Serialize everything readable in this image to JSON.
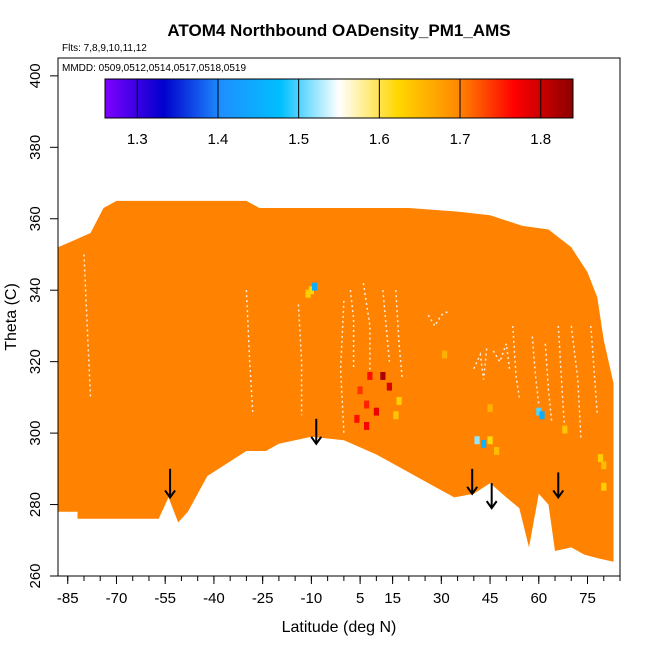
{
  "chart_data": {
    "type": "heatmap",
    "title": "ATOM4 Northbound OADensity_PM1_AMS",
    "flights_note": "Flts: 7,8,9,10,11,12",
    "dates_note": "MMDD: 0509,0512,0514,0517,0518,0519",
    "xlabel": "Latitude (deg N)",
    "ylabel": "Theta (C)",
    "xlim": [
      -88,
      85
    ],
    "ylim": [
      260,
      405
    ],
    "x_ticks": [
      "-85",
      "-70",
      "-55",
      "-40",
      "-25",
      "-10",
      "5",
      "15",
      "30",
      "45",
      "60",
      "75"
    ],
    "x_tick_values": [
      -85,
      -70,
      -55,
      -40,
      -25,
      -10,
      5,
      15,
      30,
      45,
      60,
      75
    ],
    "x_minor_step": 5,
    "y_ticks": [
      "260",
      "280",
      "300",
      "320",
      "340",
      "360",
      "380",
      "400"
    ],
    "y_tick_values": [
      260,
      280,
      300,
      320,
      340,
      360,
      380,
      400
    ],
    "colorbar": {
      "range": [
        1.26,
        1.84
      ],
      "tick_labels": [
        "1.3",
        "1.4",
        "1.5",
        "1.6",
        "1.7",
        "1.8"
      ],
      "tick_values": [
        1.3,
        1.4,
        1.5,
        1.6,
        1.7,
        1.8
      ],
      "colors": [
        "#7f00ff",
        "#0000cd",
        "#1e90ff",
        "#00bfff",
        "#ffffff",
        "#ffd700",
        "#ff8c00",
        "#ff0000",
        "#8b0000"
      ]
    },
    "background_value": 1.7,
    "background_color": "#ff8c00",
    "domain_top": [
      [
        -88,
        352
      ],
      [
        -83,
        354
      ],
      [
        -78,
        356
      ],
      [
        -74,
        363
      ],
      [
        -70,
        365
      ],
      [
        -60,
        365
      ],
      [
        -30,
        365
      ],
      [
        -26,
        363
      ],
      [
        -10,
        363
      ],
      [
        5,
        363
      ],
      [
        20,
        363
      ],
      [
        35,
        362
      ],
      [
        45,
        361
      ],
      [
        55,
        358
      ],
      [
        63,
        357
      ],
      [
        70,
        352
      ],
      [
        75,
        345
      ],
      [
        78,
        338
      ],
      [
        80,
        326
      ],
      [
        83,
        314
      ]
    ],
    "domain_bottom": [
      [
        -88,
        278
      ],
      [
        -82,
        278
      ],
      [
        -82,
        276
      ],
      [
        -65,
        276
      ],
      [
        -57,
        276
      ],
      [
        -54,
        282
      ],
      [
        -51,
        275
      ],
      [
        -48,
        278
      ],
      [
        -42,
        288
      ],
      [
        -30,
        295
      ],
      [
        -24,
        295
      ],
      [
        -20,
        297
      ],
      [
        -10,
        299
      ],
      [
        0,
        298
      ],
      [
        10,
        294
      ],
      [
        20,
        289
      ],
      [
        28,
        285
      ],
      [
        34,
        282
      ],
      [
        40,
        283
      ],
      [
        45,
        286
      ],
      [
        50,
        282
      ],
      [
        54,
        279
      ],
      [
        57,
        268
      ],
      [
        60,
        283
      ],
      [
        63,
        280
      ],
      [
        65,
        267
      ],
      [
        70,
        268
      ],
      [
        74,
        266
      ],
      [
        78,
        265
      ],
      [
        83,
        264
      ]
    ],
    "cells": [
      {
        "lat": -10,
        "theta": 340,
        "value": 1.62
      },
      {
        "lat": -9,
        "theta": 341,
        "value": 1.45
      },
      {
        "lat": -11,
        "theta": 339,
        "value": 1.63
      },
      {
        "lat": 8,
        "theta": 316,
        "value": 1.76
      },
      {
        "lat": 12,
        "theta": 316,
        "value": 1.82
      },
      {
        "lat": 5,
        "theta": 312,
        "value": 1.74
      },
      {
        "lat": 7,
        "theta": 308,
        "value": 1.75
      },
      {
        "lat": 14,
        "theta": 313,
        "value": 1.79
      },
      {
        "lat": 4,
        "theta": 304,
        "value": 1.76
      },
      {
        "lat": 10,
        "theta": 306,
        "value": 1.78
      },
      {
        "lat": 17,
        "theta": 309,
        "value": 1.63
      },
      {
        "lat": 7,
        "theta": 302,
        "value": 1.77
      },
      {
        "lat": 16,
        "theta": 305,
        "value": 1.64
      },
      {
        "lat": 31,
        "theta": 322,
        "value": 1.66
      },
      {
        "lat": 41,
        "theta": 298,
        "value": 1.52
      },
      {
        "lat": 43,
        "theta": 297,
        "value": 1.46
      },
      {
        "lat": 45,
        "theta": 298,
        "value": 1.62
      },
      {
        "lat": 47,
        "theta": 295,
        "value": 1.65
      },
      {
        "lat": 45,
        "theta": 307,
        "value": 1.66
      },
      {
        "lat": 60,
        "theta": 306,
        "value": 1.5
      },
      {
        "lat": 61,
        "theta": 305,
        "value": 1.45
      },
      {
        "lat": 68,
        "theta": 301,
        "value": 1.64
      },
      {
        "lat": 79,
        "theta": 293,
        "value": 1.63
      },
      {
        "lat": 80,
        "theta": 291,
        "value": 1.65
      },
      {
        "lat": 80,
        "theta": 285,
        "value": 1.63
      }
    ],
    "sparse_lines": [
      [
        [
          -80,
          350
        ],
        [
          -79,
          330
        ],
        [
          -78,
          310
        ]
      ],
      [
        [
          -30,
          340
        ],
        [
          -29,
          320
        ],
        [
          -28,
          305
        ]
      ],
      [
        [
          -14,
          336
        ],
        [
          -13,
          320
        ],
        [
          -13,
          305
        ]
      ],
      [
        [
          0,
          337
        ],
        [
          -1,
          318
        ],
        [
          0,
          300
        ]
      ],
      [
        [
          2,
          340
        ],
        [
          3,
          332
        ],
        [
          3,
          318
        ]
      ],
      [
        [
          6,
          342
        ],
        [
          8,
          330
        ],
        [
          8,
          315
        ]
      ],
      [
        [
          12,
          340
        ],
        [
          13,
          330
        ],
        [
          14,
          320
        ]
      ],
      [
        [
          16,
          340
        ],
        [
          17,
          325
        ],
        [
          18,
          315
        ]
      ],
      [
        [
          26,
          333
        ],
        [
          28,
          330
        ],
        [
          30,
          333
        ],
        [
          32,
          334
        ]
      ],
      [
        [
          40,
          318
        ],
        [
          42,
          322
        ],
        [
          43,
          315
        ],
        [
          44,
          324
        ]
      ],
      [
        [
          46,
          323
        ],
        [
          48,
          320
        ],
        [
          50,
          325
        ],
        [
          51,
          318
        ]
      ],
      [
        [
          52,
          330
        ],
        [
          53,
          316
        ],
        [
          54,
          310
        ]
      ],
      [
        [
          58,
          327
        ],
        [
          59,
          316
        ],
        [
          60,
          308
        ]
      ],
      [
        [
          62,
          325
        ],
        [
          63,
          312
        ],
        [
          64,
          303
        ]
      ],
      [
        [
          66,
          330
        ],
        [
          67,
          315
        ],
        [
          68,
          300
        ]
      ],
      [
        [
          70,
          330
        ],
        [
          72,
          315
        ],
        [
          73,
          298
        ]
      ],
      [
        [
          76,
          330
        ],
        [
          77,
          318
        ],
        [
          78,
          305
        ]
      ]
    ],
    "arrows": [
      {
        "lat": -53.5,
        "theta_top": 290,
        "theta_tip": 282
      },
      {
        "lat": -8.5,
        "theta_top": 304,
        "theta_tip": 297
      },
      {
        "lat": 39.5,
        "theta_top": 290,
        "theta_tip": 283
      },
      {
        "lat": 45.5,
        "theta_top": 286,
        "theta_tip": 279
      },
      {
        "lat": 66,
        "theta_top": 289,
        "theta_tip": 282
      }
    ]
  }
}
